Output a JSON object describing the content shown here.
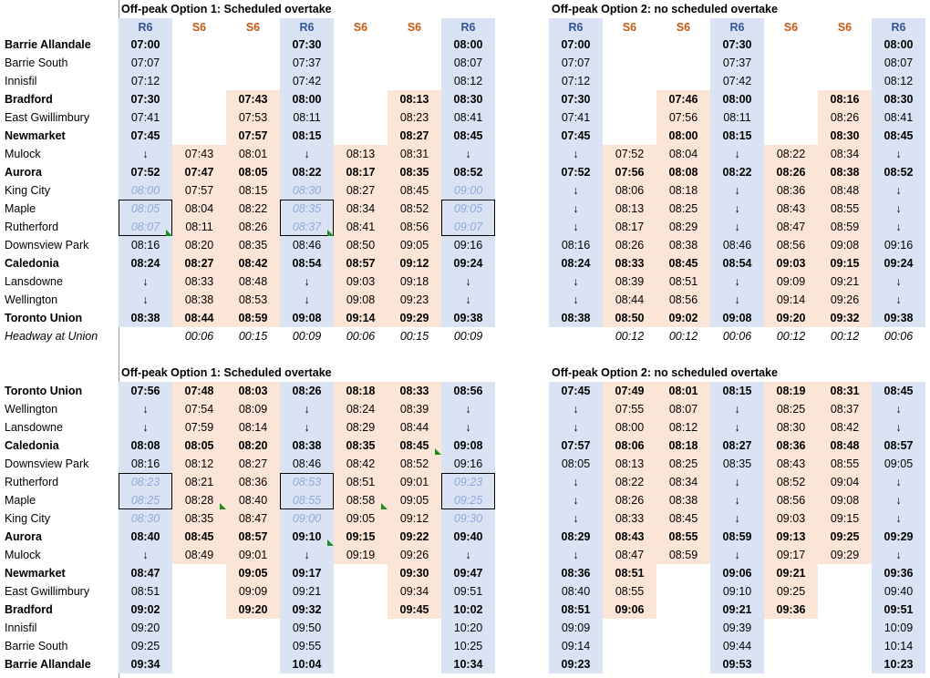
{
  "stations_top": [
    {
      "name": "Barrie Allandale",
      "bold": true
    },
    {
      "name": "Barrie South"
    },
    {
      "name": "Innisfil"
    },
    {
      "name": "Bradford",
      "bold": true
    },
    {
      "name": "East Gwillimbury"
    },
    {
      "name": "Newmarket",
      "bold": true
    },
    {
      "name": "Mulock"
    },
    {
      "name": "Aurora",
      "bold": true
    },
    {
      "name": "King City"
    },
    {
      "name": "Maple"
    },
    {
      "name": "Rutherford"
    },
    {
      "name": "Downsview Park"
    },
    {
      "name": "Caledonia",
      "bold": true
    },
    {
      "name": "Lansdowne"
    },
    {
      "name": "Wellington"
    },
    {
      "name": "Toronto Union",
      "bold": true
    },
    {
      "name": "Headway at Union",
      "italic": true
    }
  ],
  "stations_bottom": [
    {
      "name": "Toronto Union",
      "bold": true
    },
    {
      "name": "Wellington"
    },
    {
      "name": "Lansdowne"
    },
    {
      "name": "Caledonia",
      "bold": true
    },
    {
      "name": "Downsview Park"
    },
    {
      "name": "Rutherford"
    },
    {
      "name": "Maple"
    },
    {
      "name": "King City"
    },
    {
      "name": "Aurora",
      "bold": true
    },
    {
      "name": "Mulock"
    },
    {
      "name": "Newmarket",
      "bold": true
    },
    {
      "name": "East Gwillimbury"
    },
    {
      "name": "Bradford",
      "bold": true
    },
    {
      "name": "Innisfil"
    },
    {
      "name": "Barrie South"
    },
    {
      "name": "Barrie Allandale",
      "bold": true
    }
  ],
  "bold_rows_top": [
    0,
    3,
    5,
    7,
    12,
    15
  ],
  "bold_rows_bottom": [
    0,
    3,
    8,
    10,
    12,
    15
  ],
  "colors": {
    "r6_bg": "#dae3f3",
    "s6_bg": "#fbe5d6",
    "r6_text": "#2f5597",
    "s6_text": "#c55a11",
    "dim_text": "#8ea9db",
    "flag": "#1e8b1e"
  },
  "panels": [
    {
      "id": "top-option-1",
      "title": "Off-peak Option 1: Scheduled overtake",
      "columns": [
        {
          "type": "R6",
          "label": "R6",
          "times": [
            "07:00",
            "07:07",
            "07:12",
            "07:30",
            "07:41",
            "07:45",
            "↓",
            "07:52",
            "08:00",
            "08:05",
            "08:07",
            "08:16",
            "08:24",
            "↓",
            "↓",
            "08:38",
            ""
          ],
          "dim": [
            8,
            9,
            10
          ]
        },
        {
          "type": "S6",
          "label": "S6",
          "times": [
            "",
            "",
            "",
            "",
            "",
            "",
            "07:43",
            "07:47",
            "07:57",
            "08:04",
            "08:11",
            "08:20",
            "08:27",
            "08:33",
            "08:38",
            "08:44",
            "00:06"
          ]
        },
        {
          "type": "S6",
          "label": "S6",
          "times": [
            "",
            "",
            "",
            "07:43",
            "07:53",
            "07:57",
            "08:01",
            "08:05",
            "08:15",
            "08:22",
            "08:26",
            "08:35",
            "08:42",
            "08:48",
            "08:53",
            "08:59",
            "00:15"
          ]
        },
        {
          "type": "R6",
          "label": "R6",
          "times": [
            "07:30",
            "07:37",
            "07:42",
            "08:00",
            "08:11",
            "08:15",
            "↓",
            "08:22",
            "08:30",
            "08:35",
            "08:37",
            "08:46",
            "08:54",
            "↓",
            "↓",
            "09:08",
            "00:09"
          ],
          "dim": [
            8,
            9,
            10
          ]
        },
        {
          "type": "S6",
          "label": "S6",
          "times": [
            "",
            "",
            "",
            "",
            "",
            "",
            "08:13",
            "08:17",
            "08:27",
            "08:34",
            "08:41",
            "08:50",
            "08:57",
            "09:03",
            "09:08",
            "09:14",
            "00:06"
          ]
        },
        {
          "type": "S6",
          "label": "S6",
          "times": [
            "",
            "",
            "",
            "08:13",
            "08:23",
            "08:27",
            "08:31",
            "08:35",
            "08:45",
            "08:52",
            "08:56",
            "09:05",
            "09:12",
            "09:18",
            "09:23",
            "09:29",
            "00:15"
          ]
        },
        {
          "type": "R6",
          "label": "R6",
          "times": [
            "08:00",
            "08:07",
            "08:12",
            "08:30",
            "08:41",
            "08:45",
            "↓",
            "08:52",
            "09:00",
            "09:05",
            "09:07",
            "09:16",
            "09:24",
            "↓",
            "↓",
            "09:38",
            "00:09"
          ],
          "dim": [
            8,
            9,
            10
          ]
        }
      ],
      "boxes": [
        {
          "col": 0,
          "row": 9
        },
        {
          "col": 3,
          "row": 9
        },
        {
          "col": 6,
          "row": 9
        }
      ],
      "flags": [
        {
          "col": 0,
          "row": 10
        },
        {
          "col": 3,
          "row": 10
        }
      ]
    },
    {
      "id": "top-option-2",
      "title": "Off-peak Option 2: no scheduled overtake",
      "columns": [
        {
          "type": "R6",
          "label": "R6",
          "times": [
            "07:00",
            "07:07",
            "07:12",
            "07:30",
            "07:41",
            "07:45",
            "↓",
            "07:52",
            "↓",
            "↓",
            "↓",
            "08:16",
            "08:24",
            "↓",
            "↓",
            "08:38",
            ""
          ]
        },
        {
          "type": "S6",
          "label": "S6",
          "times": [
            "",
            "",
            "",
            "",
            "",
            "",
            "07:52",
            "07:56",
            "08:06",
            "08:13",
            "08:17",
            "08:26",
            "08:33",
            "08:39",
            "08:44",
            "08:50",
            "00:12"
          ]
        },
        {
          "type": "S6",
          "label": "S6",
          "times": [
            "",
            "",
            "",
            "07:46",
            "07:56",
            "08:00",
            "08:04",
            "08:08",
            "08:18",
            "08:25",
            "08:29",
            "08:38",
            "08:45",
            "08:51",
            "08:56",
            "09:02",
            "00:12"
          ]
        },
        {
          "type": "R6",
          "label": "R6",
          "times": [
            "07:30",
            "07:37",
            "07:42",
            "08:00",
            "08:11",
            "08:15",
            "↓",
            "08:22",
            "↓",
            "↓",
            "↓",
            "08:46",
            "08:54",
            "↓",
            "↓",
            "09:08",
            "00:06"
          ]
        },
        {
          "type": "S6",
          "label": "S6",
          "times": [
            "",
            "",
            "",
            "",
            "",
            "",
            "08:22",
            "08:26",
            "08:36",
            "08:43",
            "08:47",
            "08:56",
            "09:03",
            "09:09",
            "09:14",
            "09:20",
            "00:12"
          ]
        },
        {
          "type": "S6",
          "label": "S6",
          "times": [
            "",
            "",
            "",
            "08:16",
            "08:26",
            "08:30",
            "08:34",
            "08:38",
            "08:48",
            "08:55",
            "08:59",
            "09:08",
            "09:15",
            "09:21",
            "09:26",
            "09:32",
            "00:12"
          ]
        },
        {
          "type": "R6",
          "label": "R6",
          "times": [
            "08:00",
            "08:07",
            "08:12",
            "08:30",
            "08:41",
            "08:45",
            "↓",
            "08:52",
            "↓",
            "↓",
            "↓",
            "09:16",
            "09:24",
            "↓",
            "↓",
            "09:38",
            "00:06"
          ]
        }
      ],
      "boxes": [],
      "flags": []
    },
    {
      "id": "bottom-option-1",
      "title": "Off-peak Option 1: Scheduled overtake",
      "columns": [
        {
          "type": "R6",
          "times": [
            "07:56",
            "↓",
            "↓",
            "08:08",
            "08:16",
            "08:23",
            "08:25",
            "08:30",
            "08:40",
            "↓",
            "08:47",
            "08:51",
            "09:02",
            "09:20",
            "09:25",
            "09:34"
          ],
          "dim": [
            5,
            6,
            7
          ]
        },
        {
          "type": "S6",
          "times": [
            "07:48",
            "07:54",
            "07:59",
            "08:05",
            "08:12",
            "08:21",
            "08:28",
            "08:35",
            "08:45",
            "08:49",
            "",
            "",
            "",
            "",
            "",
            ""
          ]
        },
        {
          "type": "S6",
          "times": [
            "08:03",
            "08:09",
            "08:14",
            "08:20",
            "08:27",
            "08:36",
            "08:40",
            "08:47",
            "08:57",
            "09:01",
            "09:05",
            "09:09",
            "09:20",
            "",
            "",
            ""
          ]
        },
        {
          "type": "R6",
          "times": [
            "08:26",
            "↓",
            "↓",
            "08:38",
            "08:46",
            "08:53",
            "08:55",
            "09:00",
            "09:10",
            "↓",
            "09:17",
            "09:21",
            "09:32",
            "09:50",
            "09:55",
            "10:04"
          ],
          "dim": [
            5,
            6,
            7
          ]
        },
        {
          "type": "S6",
          "times": [
            "08:18",
            "08:24",
            "08:29",
            "08:35",
            "08:42",
            "08:51",
            "08:58",
            "09:05",
            "09:15",
            "09:19",
            "",
            "",
            "",
            "",
            "",
            ""
          ]
        },
        {
          "type": "S6",
          "times": [
            "08:33",
            "08:39",
            "08:44",
            "08:45",
            "08:52",
            "09:01",
            "09:05",
            "09:12",
            "09:22",
            "09:26",
            "09:30",
            "09:34",
            "09:45",
            "",
            "",
            ""
          ]
        },
        {
          "type": "R6",
          "times": [
            "08:56",
            "↓",
            "↓",
            "09:08",
            "09:16",
            "09:23",
            "09:25",
            "09:30",
            "09:40",
            "↓",
            "09:47",
            "09:51",
            "10:02",
            "10:20",
            "10:25",
            "10:34"
          ],
          "dim": [
            5,
            6,
            7
          ]
        }
      ],
      "boxes": [
        {
          "col": 0,
          "row": 5
        },
        {
          "col": 3,
          "row": 5
        },
        {
          "col": 6,
          "row": 5
        }
      ],
      "flags": [
        {
          "col": 1,
          "row": 6
        },
        {
          "col": 4,
          "row": 6
        },
        {
          "col": 5,
          "row": 3
        },
        {
          "col": 3,
          "row": 8
        }
      ]
    },
    {
      "id": "bottom-option-2",
      "title": "Off-peak Option 2: no scheduled overtake",
      "columns": [
        {
          "type": "R6",
          "times": [
            "07:45",
            "↓",
            "↓",
            "07:57",
            "08:05",
            "↓",
            "↓",
            "↓",
            "08:29",
            "↓",
            "08:36",
            "08:40",
            "08:51",
            "09:09",
            "09:14",
            "09:23"
          ]
        },
        {
          "type": "S6",
          "times": [
            "07:49",
            "07:55",
            "08:00",
            "08:06",
            "08:13",
            "08:22",
            "08:26",
            "08:33",
            "08:43",
            "08:47",
            "08:51",
            "08:55",
            "09:06",
            "",
            "",
            ""
          ]
        },
        {
          "type": "S6",
          "times": [
            "08:01",
            "08:07",
            "08:12",
            "08:18",
            "08:25",
            "08:34",
            "08:38",
            "08:45",
            "08:55",
            "08:59",
            "",
            "",
            "",
            "",
            "",
            ""
          ]
        },
        {
          "type": "R6",
          "times": [
            "08:15",
            "↓",
            "↓",
            "08:27",
            "08:35",
            "↓",
            "↓",
            "↓",
            "08:59",
            "↓",
            "09:06",
            "09:10",
            "09:21",
            "09:39",
            "09:44",
            "09:53"
          ]
        },
        {
          "type": "S6",
          "times": [
            "08:19",
            "08:25",
            "08:30",
            "08:36",
            "08:43",
            "08:52",
            "08:56",
            "09:03",
            "09:13",
            "09:17",
            "09:21",
            "09:25",
            "09:36",
            "",
            "",
            ""
          ]
        },
        {
          "type": "S6",
          "times": [
            "08:31",
            "08:37",
            "08:42",
            "08:48",
            "08:55",
            "09:04",
            "09:08",
            "09:15",
            "09:25",
            "09:29",
            "",
            "",
            "",
            "",
            "",
            ""
          ]
        },
        {
          "type": "R6",
          "times": [
            "08:45",
            "↓",
            "↓",
            "08:57",
            "09:05",
            "↓",
            "↓",
            "↓",
            "09:29",
            "↓",
            "09:36",
            "09:40",
            "09:51",
            "10:09",
            "10:14",
            "10:23"
          ]
        }
      ],
      "boxes": [],
      "flags": []
    }
  ]
}
